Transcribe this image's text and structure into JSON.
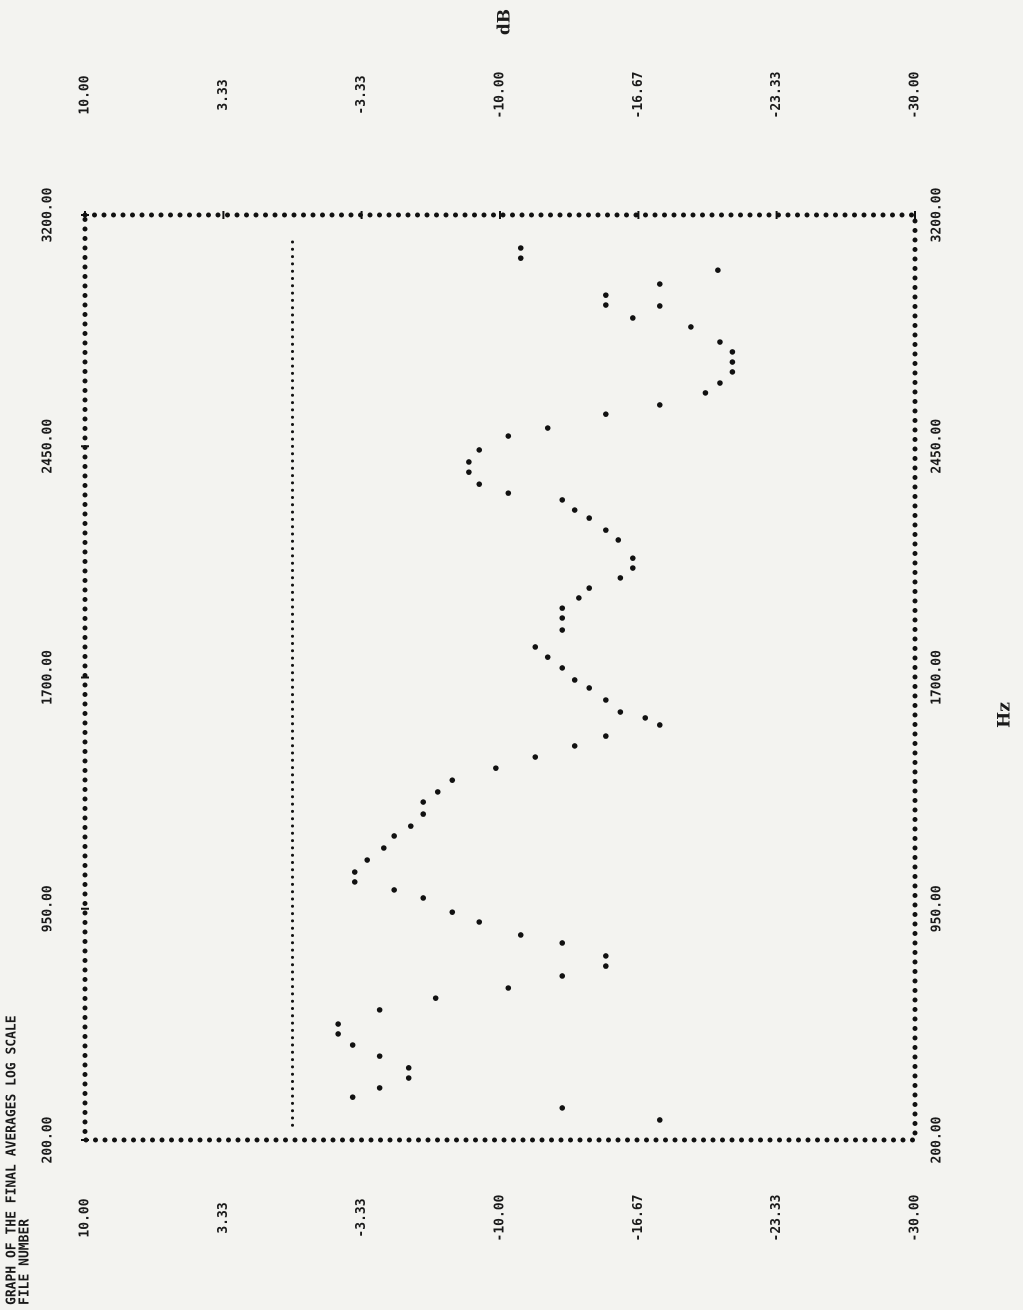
{
  "chart_data": {
    "type": "scatter",
    "title": "GRAPH OF THE FINAL AVERAGES    LOG SCALE",
    "subtitle": "FILE NUMBER",
    "x_label": "Hz",
    "y_label": "dB",
    "xlim": [
      200,
      3200
    ],
    "xticks": [
      {
        "value": 200,
        "label": "200.00"
      },
      {
        "value": 950,
        "label": "950.00"
      },
      {
        "value": 1700,
        "label": "1700.00"
      },
      {
        "value": 2450,
        "label": "2450.00"
      },
      {
        "value": 3200,
        "label": "3200.00"
      }
    ],
    "ylim": [
      -30,
      10
    ],
    "yticks": [
      {
        "value": 10,
        "label": "10.00"
      },
      {
        "value": 3.33,
        "label": "3.33"
      },
      {
        "value": -3.33,
        "label": "-3.33"
      },
      {
        "value": -10,
        "label": "-10.00"
      },
      {
        "value": -16.67,
        "label": "-16.67"
      },
      {
        "value": -23.33,
        "label": "-23.33"
      },
      {
        "value": -30,
        "label": "-30.00"
      }
    ],
    "yline": 0,
    "grid": false,
    "x": [
      265,
      304,
      339,
      369,
      401,
      434,
      472,
      508,
      544,
      576,
      622,
      660,
      693,
      732,
      764,
      797,
      839,
      865,
      907,
      939,
      985,
      1011,
      1037,
      1069,
      1108,
      1147,
      1186,
      1218,
      1257,
      1296,
      1329,
      1367,
      1406,
      1442,
      1478,
      1510,
      1546,
      1569,
      1588,
      1627,
      1666,
      1692,
      1731,
      1766,
      1799,
      1854,
      1893,
      1925,
      1958,
      1990,
      2023,
      2055,
      2087,
      2146,
      2178,
      2217,
      2243,
      2276,
      2298,
      2327,
      2366,
      2399,
      2438,
      2483,
      2509,
      2554,
      2584,
      2623,
      2655,
      2691,
      2723,
      2756,
      2788,
      2837,
      2866,
      2905,
      2908,
      2940,
      2976,
      3021,
      3060,
      3093
    ],
    "series": [
      {
        "name": "dB",
        "color": "#111111",
        "values": [
          -17.7,
          -13.0,
          -2.9,
          -4.2,
          -5.6,
          -5.6,
          -4.2,
          -2.9,
          -2.2,
          -2.2,
          -4.2,
          -6.9,
          -10.4,
          -13.0,
          -15.1,
          -15.1,
          -13.0,
          -11.0,
          -9.0,
          -7.7,
          -6.3,
          -4.9,
          -3.0,
          -3.0,
          -3.6,
          -4.4,
          -4.9,
          -5.7,
          -6.3,
          -6.3,
          -7.0,
          -7.7,
          -9.8,
          -11.7,
          -13.6,
          -15.1,
          -17.7,
          -17.0,
          -15.8,
          -15.1,
          -14.3,
          -13.6,
          -13.0,
          -12.3,
          -11.7,
          -13.0,
          -13.0,
          -13.0,
          -13.8,
          -14.3,
          -15.8,
          -16.4,
          -16.4,
          -15.7,
          -15.1,
          -14.3,
          -13.6,
          -13.0,
          -10.4,
          -9.0,
          -8.5,
          -8.5,
          -9.0,
          -10.4,
          -12.3,
          -15.1,
          -17.7,
          -19.9,
          -20.6,
          -21.2,
          -21.2,
          -21.2,
          -20.6,
          -19.2,
          -16.4,
          -17.7,
          -15.1,
          -15.1,
          -17.7,
          -20.5,
          -11.0,
          -11.0
        ]
      }
    ]
  }
}
